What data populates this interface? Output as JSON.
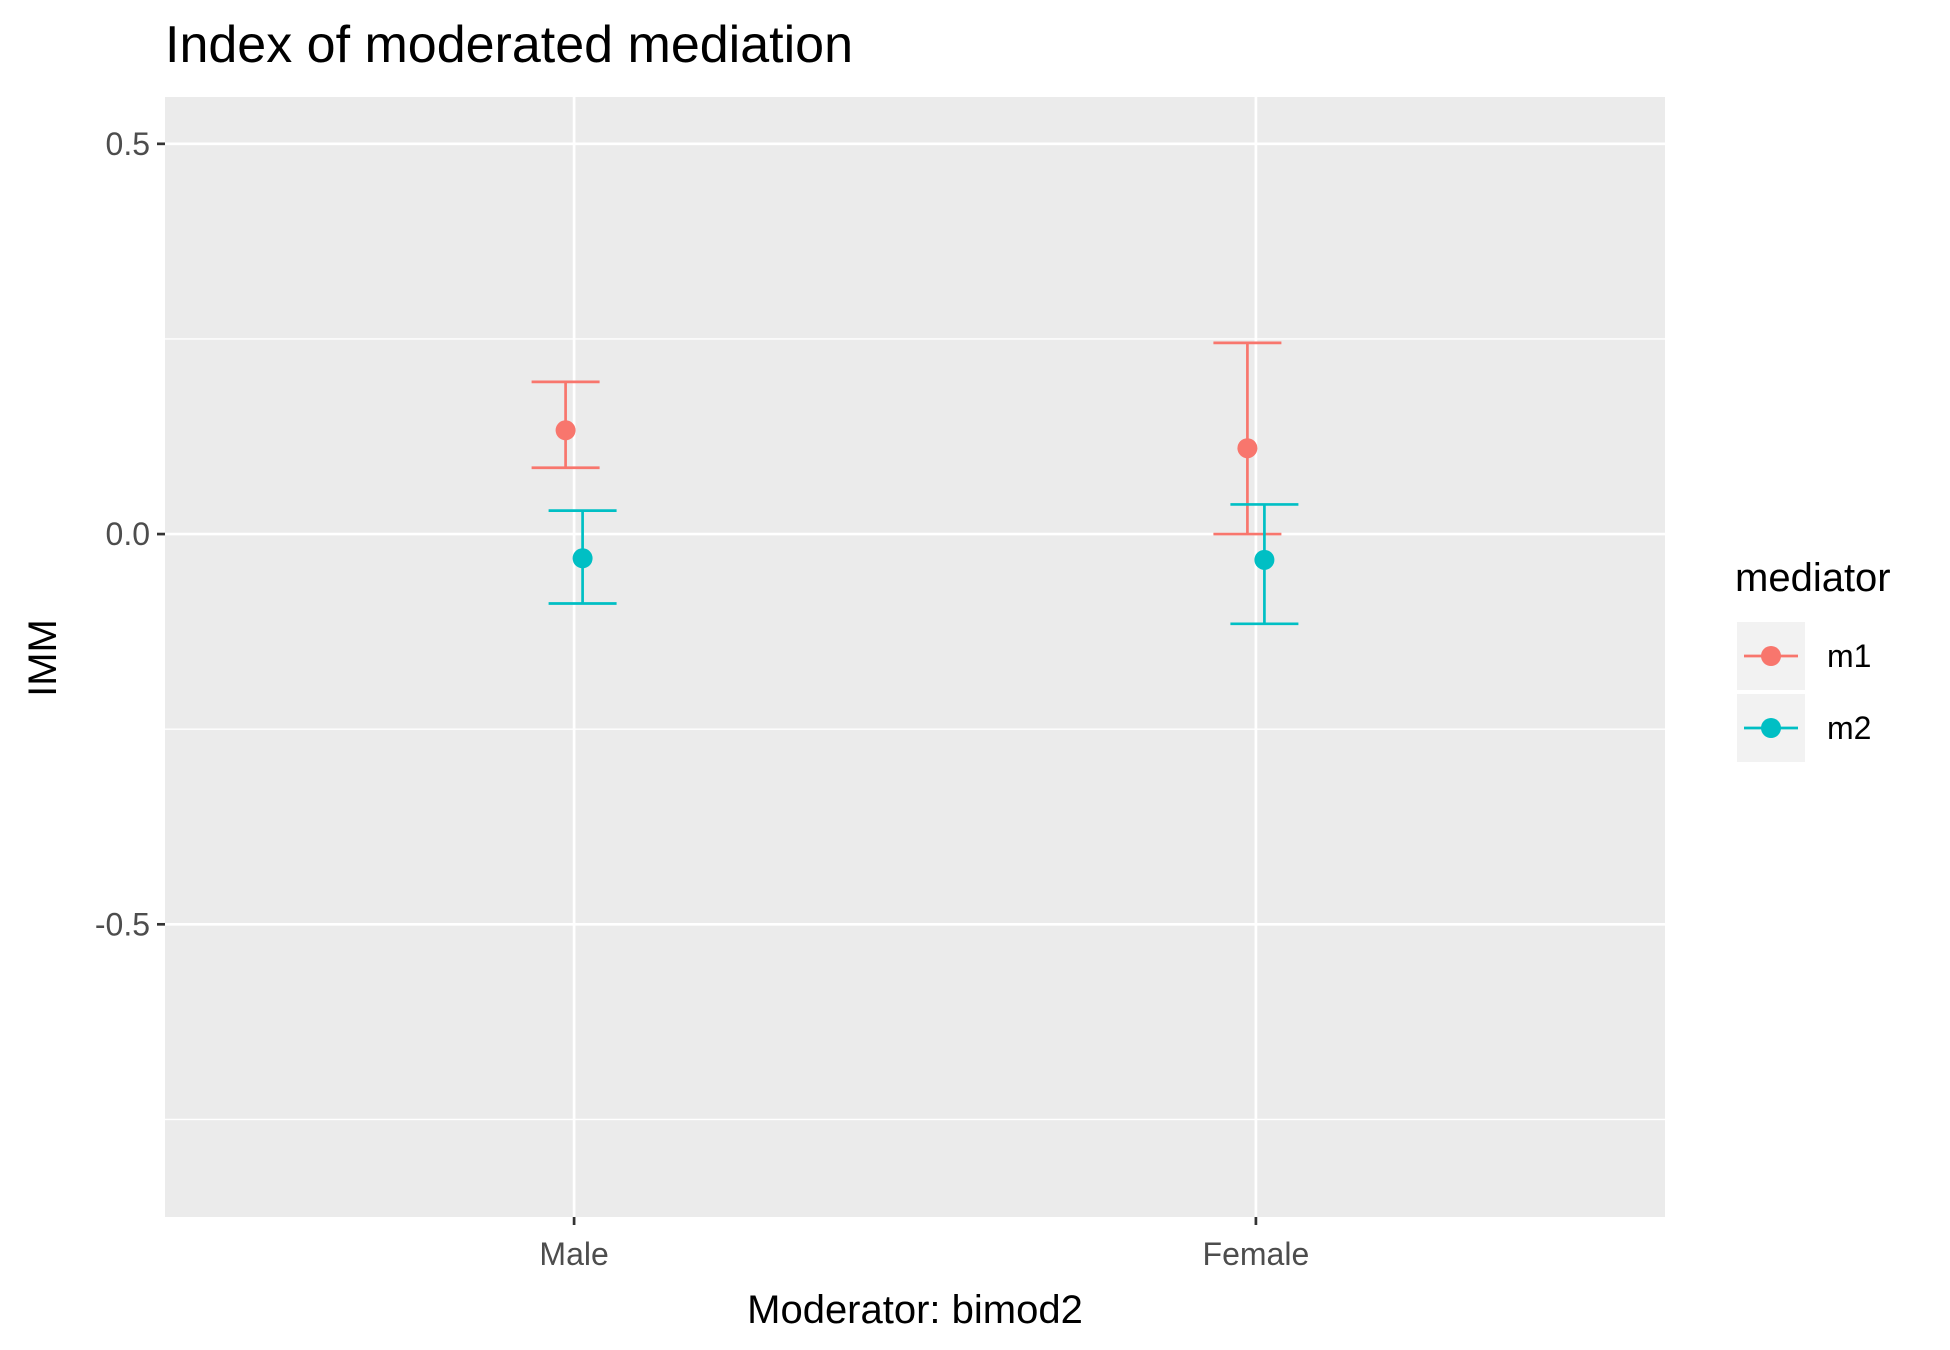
{
  "chart_data": {
    "type": "scatter",
    "title": "Index of moderated mediation",
    "xlabel": "Moderator: bimod2",
    "ylabel": "IMM",
    "categories": [
      "Male",
      "Female"
    ],
    "yticks": [
      "0.5",
      "0.0",
      "-0.5"
    ],
    "ytick_values": [
      0.5,
      0.0,
      -0.5
    ],
    "ylim": [
      -0.875,
      0.56
    ],
    "grid": true,
    "legend": {
      "title": "mediator",
      "position": "right"
    },
    "series": [
      {
        "name": "m1",
        "color": "#F8766D",
        "values": [
          0.133,
          0.11
        ],
        "lower": [
          0.085,
          0.0
        ],
        "upper": [
          0.195,
          0.245
        ]
      },
      {
        "name": "m2",
        "color": "#00BFC4",
        "values": [
          -0.031,
          -0.033
        ],
        "lower": [
          -0.089,
          -0.115
        ],
        "upper": [
          0.03,
          0.038
        ]
      }
    ]
  }
}
